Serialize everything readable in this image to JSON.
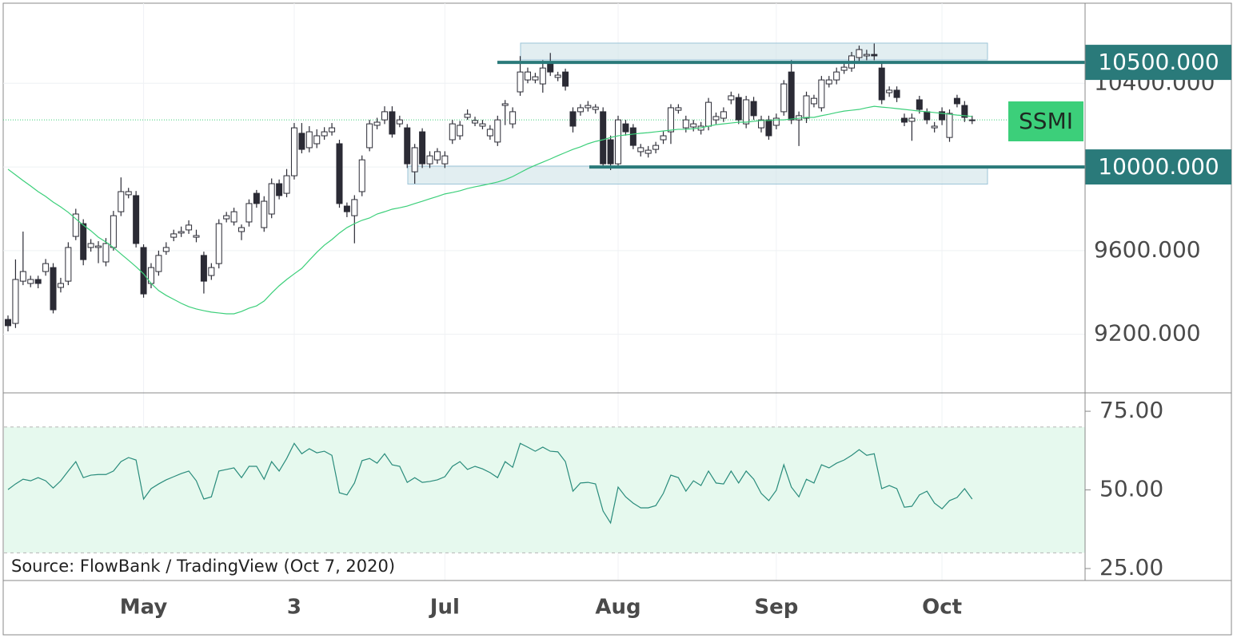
{
  "chart_data": [
    {
      "type": "candlestick",
      "label": "SSMI",
      "categories": [
        null,
        null,
        null,
        null,
        null,
        null,
        null,
        null,
        null,
        null,
        null,
        null,
        null,
        null,
        null,
        null,
        null,
        null,
        "May",
        null,
        null,
        null,
        null,
        null,
        null,
        null,
        null,
        null,
        null,
        null,
        null,
        null,
        null,
        null,
        null,
        null,
        null,
        null,
        "3",
        null,
        null,
        null,
        null,
        null,
        null,
        null,
        null,
        null,
        null,
        null,
        null,
        null,
        null,
        null,
        null,
        null,
        null,
        null,
        "Jul",
        null,
        null,
        null,
        null,
        null,
        null,
        null,
        null,
        null,
        null,
        null,
        null,
        null,
        null,
        null,
        null,
        null,
        null,
        null,
        null,
        null,
        null,
        "Aug",
        null,
        null,
        null,
        null,
        null,
        null,
        null,
        null,
        null,
        null,
        null,
        null,
        null,
        null,
        null,
        null,
        null,
        null,
        null,
        null,
        "Sep",
        null,
        null,
        null,
        null,
        null,
        null,
        null,
        null,
        null,
        null,
        null,
        null,
        null,
        null,
        null,
        null,
        null,
        null,
        null,
        null,
        null,
        "Oct",
        null,
        null,
        null,
        null
      ],
      "open": [
        9271,
        9252,
        9454,
        9443,
        9462,
        9500,
        9519,
        9424,
        9454,
        9668,
        9729,
        9615,
        9615,
        9546,
        9615,
        9786,
        9867,
        9863,
        9615,
        9443,
        9500,
        9596,
        9664,
        9684,
        9699,
        9664,
        9577,
        9481,
        9538,
        9752,
        9737,
        9691,
        9737,
        9874,
        9710,
        9775,
        9920,
        9874,
        9958,
        10161,
        10092,
        10111,
        10149,
        10168,
        10111,
        9813,
        9767,
        9882,
        10092,
        10199,
        10225,
        10264,
        10206,
        10187,
        9977,
        10168,
        10015,
        10034,
        10015,
        10130,
        10149,
        10237,
        10210,
        10195,
        10149,
        10119,
        10294,
        10206,
        10359,
        10416,
        10416,
        10397,
        10493,
        10428,
        10454,
        10264,
        10264,
        10283,
        10275,
        10264,
        10130,
        10015,
        10206,
        10187,
        10073,
        10065,
        10084,
        10130,
        10168,
        10271,
        10187,
        10191,
        10176,
        10195,
        10225,
        10233,
        10321,
        10332,
        10206,
        10313,
        10187,
        10225,
        10199,
        10264,
        10454,
        10225,
        10233,
        10302,
        10283,
        10397,
        10416,
        10462,
        10473,
        10523,
        10531,
        10538,
        10473,
        10355,
        10367,
        10233,
        10218,
        10321,
        10264,
        10187,
        10264,
        10141,
        10328,
        10294,
        10222
      ],
      "high": [
        9290,
        9558,
        9691,
        9480,
        9480,
        9560,
        9540,
        9470,
        9640,
        9800,
        9750,
        9655,
        9645,
        9660,
        9790,
        9950,
        9900,
        9885,
        9630,
        9540,
        9600,
        9640,
        9700,
        9715,
        9745,
        9700,
        9595,
        9540,
        9750,
        9785,
        9805,
        9725,
        9845,
        9890,
        9860,
        9945,
        9940,
        9990,
        10210,
        10210,
        10195,
        10180,
        10190,
        10210,
        10130,
        9830,
        9865,
        10055,
        10225,
        10235,
        10290,
        10290,
        10245,
        10205,
        10110,
        10185,
        10075,
        10090,
        10075,
        10225,
        10220,
        10275,
        10240,
        10225,
        10200,
        10245,
        10320,
        10285,
        10530,
        10475,
        10450,
        10510,
        10545,
        10455,
        10470,
        10285,
        10300,
        10315,
        10300,
        10285,
        10150,
        10245,
        10225,
        10205,
        10110,
        10100,
        10120,
        10170,
        10300,
        10300,
        10245,
        10225,
        10215,
        10330,
        10260,
        10285,
        10360,
        10350,
        10340,
        10335,
        10245,
        10245,
        10255,
        10415,
        10510,
        10265,
        10360,
        10345,
        10435,
        10435,
        10475,
        10495,
        10550,
        10580,
        10560,
        10590,
        10495,
        10385,
        10385,
        10255,
        10255,
        10340,
        10280,
        10215,
        10285,
        10275,
        10345,
        10315,
        10245
      ],
      "low": [
        9214,
        9230,
        9435,
        9425,
        9420,
        9480,
        9300,
        9400,
        9435,
        9650,
        9530,
        9595,
        9540,
        9525,
        9600,
        9765,
        9850,
        9615,
        9375,
        9420,
        9480,
        9580,
        9645,
        9665,
        9680,
        9640,
        9395,
        9460,
        9515,
        9735,
        9720,
        9650,
        9715,
        9805,
        9690,
        9755,
        9845,
        9855,
        9940,
        10065,
        10070,
        10090,
        10130,
        10150,
        9805,
        9760,
        9635,
        9860,
        10075,
        10180,
        10205,
        10140,
        10190,
        9995,
        9920,
        9995,
        9995,
        10015,
        9995,
        10110,
        10130,
        10225,
        10195,
        10180,
        10130,
        10100,
        10200,
        10185,
        10340,
        10400,
        10400,
        10355,
        10435,
        10410,
        10365,
        10165,
        10245,
        10265,
        10255,
        9995,
        9985,
        9995,
        10150,
        10085,
        10050,
        10045,
        10065,
        10110,
        10110,
        10255,
        10165,
        10170,
        10155,
        10175,
        10205,
        10215,
        10300,
        10205,
        10185,
        10225,
        10165,
        10130,
        10180,
        10245,
        10205,
        10100,
        10210,
        10285,
        10265,
        10380,
        10395,
        10445,
        10455,
        10505,
        10510,
        10510,
        10300,
        10335,
        10310,
        10195,
        10125,
        10255,
        10205,
        10165,
        10200,
        10120,
        10285,
        10215,
        10205
      ],
      "close": [
        9241,
        9462,
        9500,
        9462,
        9443,
        9538,
        9317,
        9443,
        9615,
        9775,
        9557,
        9634,
        9622,
        9634,
        9767,
        9882,
        9882,
        9634,
        9393,
        9519,
        9577,
        9615,
        9680,
        9691,
        9722,
        9672,
        9454,
        9519,
        9729,
        9767,
        9786,
        9710,
        9825,
        9825,
        9836,
        9920,
        9863,
        9958,
        10187,
        10084,
        10168,
        10149,
        10168,
        10187,
        9825,
        9786,
        9844,
        10034,
        10206,
        10214,
        10264,
        10157,
        10225,
        10015,
        10092,
        10015,
        10053,
        10073,
        10053,
        10206,
        10199,
        10252,
        10222,
        10206,
        10180,
        10225,
        10302,
        10264,
        10454,
        10454,
        10431,
        10473,
        10454,
        10439,
        10386,
        10195,
        10283,
        10294,
        10286,
        10015,
        10015,
        10225,
        10168,
        10103,
        10092,
        10080,
        10103,
        10149,
        10283,
        10283,
        10225,
        10206,
        10195,
        10309,
        10241,
        10264,
        10340,
        10225,
        10321,
        10245,
        10225,
        10149,
        10233,
        10397,
        10225,
        10245,
        10340,
        10328,
        10416,
        10416,
        10454,
        10477,
        10531,
        10561,
        10538,
        10531,
        10321,
        10367,
        10332,
        10214,
        10233,
        10275,
        10225,
        10195,
        10225,
        10256,
        10302,
        10237,
        10225
      ],
      "up_color": "#ffffff",
      "down_color": "#2b2b35",
      "ma": {
        "color": "#3ccf7a",
        "values": [
          9989,
          9962,
          9935,
          9909,
          9882,
          9859,
          9832,
          9809,
          9783,
          9752,
          9722,
          9695,
          9664,
          9641,
          9615,
          9584,
          9554,
          9523,
          9489,
          9443,
          9409,
          9386,
          9367,
          9348,
          9332,
          9321,
          9313,
          9306,
          9302,
          9298,
          9298,
          9309,
          9325,
          9336,
          9359,
          9397,
          9432,
          9462,
          9489,
          9515,
          9554,
          9592,
          9626,
          9653,
          9684,
          9710,
          9729,
          9745,
          9756,
          9775,
          9786,
          9798,
          9805,
          9813,
          9825,
          9836,
          9848,
          9859,
          9871,
          9878,
          9886,
          9897,
          9905,
          9912,
          9920,
          9928,
          9939,
          9954,
          9973,
          9992,
          10008,
          10023,
          10038,
          10054,
          10069,
          10084,
          10096,
          10111,
          10122,
          10130,
          10141,
          10149,
          10153,
          10157,
          10161,
          10164,
          10168,
          10172,
          10176,
          10180,
          10180,
          10183,
          10187,
          10195,
          10202,
          10206,
          10210,
          10214,
          10214,
          10218,
          10222,
          10222,
          10225,
          10225,
          10229,
          10233,
          10237,
          10237,
          10245,
          10252,
          10260,
          10267,
          10271,
          10275,
          10283,
          10290,
          10286,
          10283,
          10279,
          10275,
          10271,
          10267,
          10264,
          10260,
          10256,
          10252,
          10248,
          10245,
          10241
        ]
      },
      "levels": [
        {
          "value": 10500,
          "label": "10500.000"
        },
        {
          "value": 10000,
          "label": "10000.000"
        }
      ],
      "level_color": "#2a7a7a",
      "zones": [
        [
          10512,
          10592
        ],
        [
          9918,
          10004
        ]
      ],
      "ylim": [
        8920,
        10779
      ],
      "yticks": [
        {
          "value": 9200,
          "label": "9200.000"
        },
        {
          "value": 9600,
          "label": "9600.000"
        },
        {
          "value": 10000,
          "label": "10000.000"
        },
        {
          "value": 10400,
          "label": "10400.000"
        }
      ],
      "grid": true
    },
    {
      "type": "line",
      "annotation": "Source: FlowBank / TradingView (Oct 7, 2020)",
      "color": "#2a8c7c",
      "values": [
        50.1,
        51.9,
        53.4,
        52.9,
        53.9,
        52.9,
        50.6,
        52.9,
        56.0,
        59.0,
        53.9,
        54.7,
        54.9,
        54.9,
        56.0,
        59.0,
        60.3,
        59.5,
        47.1,
        50.4,
        51.9,
        53.2,
        54.2,
        55.2,
        56.0,
        52.9,
        47.1,
        47.8,
        56.0,
        56.5,
        57.0,
        53.9,
        57.5,
        57.5,
        53.4,
        59.0,
        56.0,
        60.0,
        64.8,
        61.5,
        63.1,
        61.8,
        62.3,
        61.0,
        49.1,
        48.4,
        52.2,
        59.3,
        60.0,
        58.5,
        61.5,
        58.0,
        57.5,
        52.4,
        53.9,
        52.4,
        52.7,
        53.2,
        54.2,
        57.5,
        59.0,
        56.5,
        57.5,
        56.7,
        55.5,
        53.9,
        59.0,
        57.2,
        64.8,
        63.6,
        62.3,
        63.6,
        62.3,
        62.1,
        59.0,
        49.6,
        52.2,
        52.4,
        51.9,
        43.3,
        39.5,
        50.9,
        47.8,
        45.8,
        44.3,
        44.3,
        45.0,
        48.9,
        54.7,
        53.9,
        49.6,
        52.9,
        51.4,
        56.0,
        52.2,
        51.9,
        56.0,
        52.2,
        56.0,
        53.4,
        48.9,
        46.6,
        49.9,
        58.0,
        50.9,
        47.8,
        53.4,
        52.2,
        58.0,
        57.0,
        58.5,
        59.5,
        61.0,
        62.8,
        61.0,
        61.5,
        50.4,
        51.4,
        50.4,
        44.5,
        44.8,
        48.4,
        49.6,
        45.8,
        44.0,
        46.6,
        47.6,
        50.4,
        47.1
      ],
      "band": [
        30,
        70
      ],
      "band_color": "#e6f9ee",
      "ylim": [
        21.2,
        80.6
      ],
      "yticks": [
        {
          "value": 25,
          "label": "25.00"
        },
        {
          "value": 50,
          "label": "50.00"
        },
        {
          "value": 75,
          "label": "75.00"
        }
      ]
    }
  ]
}
